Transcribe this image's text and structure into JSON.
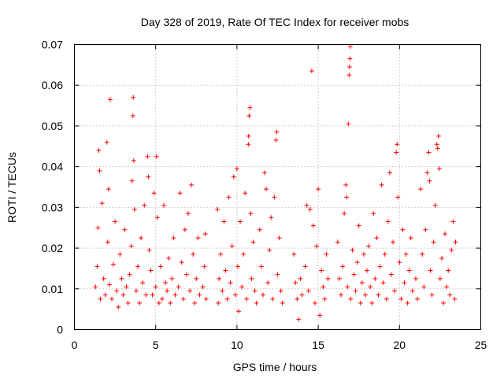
{
  "chart_data": {
    "type": "scatter",
    "title": "Day 328 of 2019, Rate Of TEC Index for receiver mobs",
    "xlabel": "GPS time / hours",
    "ylabel": "ROTI / TECUs",
    "xlim": [
      0,
      25
    ],
    "ylim": [
      0,
      0.07
    ],
    "x_ticks": [
      0,
      5,
      10,
      15,
      20,
      25
    ],
    "y_ticks": [
      0,
      0.01,
      0.02,
      0.03,
      0.04,
      0.05,
      0.06,
      0.07
    ],
    "x_tick_labels": [
      "0",
      "5",
      "10",
      "15",
      "20",
      "25"
    ],
    "y_tick_labels": [
      "0",
      "0.01",
      "0.02",
      "0.03",
      "0.04",
      "0.05",
      "0.06",
      "0.07"
    ],
    "grid": true,
    "marker": "+",
    "color": "#ff0000",
    "series": [
      {
        "name": "ROTI",
        "points": [
          [
            1.3,
            0.0105
          ],
          [
            1.4,
            0.0155
          ],
          [
            1.45,
            0.025
          ],
          [
            1.5,
            0.044
          ],
          [
            1.55,
            0.039
          ],
          [
            1.6,
            0.0075
          ],
          [
            1.7,
            0.031
          ],
          [
            1.8,
            0.0125
          ],
          [
            1.9,
            0.0085
          ],
          [
            2.0,
            0.046
          ],
          [
            2.05,
            0.0215
          ],
          [
            2.1,
            0.0345
          ],
          [
            2.15,
            0.011
          ],
          [
            2.2,
            0.0565
          ],
          [
            2.3,
            0.0075
          ],
          [
            2.4,
            0.016
          ],
          [
            2.5,
            0.0265
          ],
          [
            2.6,
            0.0095
          ],
          [
            2.7,
            0.0055
          ],
          [
            2.8,
            0.0185
          ],
          [
            2.9,
            0.0125
          ],
          [
            3.0,
            0.0085
          ],
          [
            3.1,
            0.0245
          ],
          [
            3.2,
            0.0105
          ],
          [
            3.3,
            0.0065
          ],
          [
            3.4,
            0.0135
          ],
          [
            3.5,
            0.0205
          ],
          [
            3.55,
            0.0365
          ],
          [
            3.6,
            0.0525
          ],
          [
            3.62,
            0.057
          ],
          [
            3.65,
            0.0415
          ],
          [
            3.7,
            0.0295
          ],
          [
            3.8,
            0.0095
          ],
          [
            3.9,
            0.0155
          ],
          [
            4.0,
            0.0065
          ],
          [
            4.1,
            0.0225
          ],
          [
            4.2,
            0.0115
          ],
          [
            4.3,
            0.0305
          ],
          [
            4.4,
            0.0085
          ],
          [
            4.5,
            0.0425
          ],
          [
            4.55,
            0.0375
          ],
          [
            4.6,
            0.0195
          ],
          [
            4.7,
            0.0145
          ],
          [
            4.8,
            0.0085
          ],
          [
            4.9,
            0.0335
          ],
          [
            5.0,
            0.0105
          ],
          [
            5.05,
            0.0425
          ],
          [
            5.1,
            0.0275
          ],
          [
            5.2,
            0.0065
          ],
          [
            5.3,
            0.0155
          ],
          [
            5.4,
            0.0075
          ],
          [
            5.5,
            0.0305
          ],
          [
            5.6,
            0.0115
          ],
          [
            5.7,
            0.0095
          ],
          [
            5.8,
            0.0175
          ],
          [
            5.9,
            0.0065
          ],
          [
            6.0,
            0.0125
          ],
          [
            6.1,
            0.0225
          ],
          [
            6.2,
            0.0085
          ],
          [
            6.4,
            0.0105
          ],
          [
            6.5,
            0.0335
          ],
          [
            6.6,
            0.0165
          ],
          [
            6.7,
            0.0075
          ],
          [
            6.8,
            0.0245
          ],
          [
            6.9,
            0.0135
          ],
          [
            7.0,
            0.0285
          ],
          [
            7.1,
            0.0095
          ],
          [
            7.2,
            0.0355
          ],
          [
            7.3,
            0.0185
          ],
          [
            7.4,
            0.0065
          ],
          [
            7.5,
            0.0125
          ],
          [
            7.6,
            0.0225
          ],
          [
            7.7,
            0.0085
          ],
          [
            7.9,
            0.0105
          ],
          [
            8.0,
            0.0155
          ],
          [
            8.05,
            0.0235
          ],
          [
            8.1,
            0.0075
          ],
          [
            8.8,
            0.0295
          ],
          [
            8.85,
            0.0065
          ],
          [
            8.9,
            0.0125
          ],
          [
            9.0,
            0.0185
          ],
          [
            9.1,
            0.0095
          ],
          [
            9.2,
            0.0265
          ],
          [
            9.3,
            0.0145
          ],
          [
            9.4,
            0.0075
          ],
          [
            9.5,
            0.0325
          ],
          [
            9.6,
            0.0115
          ],
          [
            9.7,
            0.0205
          ],
          [
            9.8,
            0.0375
          ],
          [
            9.9,
            0.0085
          ],
          [
            10.0,
            0.0395
          ],
          [
            10.05,
            0.0155
          ],
          [
            10.1,
            0.0045
          ],
          [
            10.2,
            0.0265
          ],
          [
            10.3,
            0.0105
          ],
          [
            10.4,
            0.0185
          ],
          [
            10.5,
            0.0335
          ],
          [
            10.6,
            0.0075
          ],
          [
            10.7,
            0.0455
          ],
          [
            10.72,
            0.0475
          ],
          [
            10.75,
            0.0525
          ],
          [
            10.8,
            0.0545
          ],
          [
            10.85,
            0.0285
          ],
          [
            10.9,
            0.0125
          ],
          [
            11.0,
            0.0215
          ],
          [
            11.1,
            0.0095
          ],
          [
            11.2,
            0.0065
          ],
          [
            11.4,
            0.0245
          ],
          [
            11.5,
            0.0155
          ],
          [
            11.6,
            0.0085
          ],
          [
            11.7,
            0.0385
          ],
          [
            11.8,
            0.0345
          ],
          [
            11.9,
            0.0115
          ],
          [
            12.0,
            0.0195
          ],
          [
            12.1,
            0.0275
          ],
          [
            12.2,
            0.0075
          ],
          [
            12.3,
            0.0325
          ],
          [
            12.4,
            0.0465
          ],
          [
            12.45,
            0.0485
          ],
          [
            12.5,
            0.0135
          ],
          [
            12.6,
            0.0225
          ],
          [
            12.7,
            0.0095
          ],
          [
            12.8,
            0.0065
          ],
          [
            13.5,
            0.0185
          ],
          [
            13.6,
            0.0115
          ],
          [
            13.7,
            0.0075
          ],
          [
            13.8,
            0.0025
          ],
          [
            13.9,
            0.0125
          ],
          [
            14.0,
            0.0085
          ],
          [
            14.2,
            0.0155
          ],
          [
            14.3,
            0.0305
          ],
          [
            14.4,
            0.0095
          ],
          [
            14.5,
            0.0295
          ],
          [
            14.6,
            0.0635
          ],
          [
            14.7,
            0.0255
          ],
          [
            14.8,
            0.0065
          ],
          [
            14.9,
            0.0205
          ],
          [
            15.0,
            0.0345
          ],
          [
            15.1,
            0.0035
          ],
          [
            15.2,
            0.0145
          ],
          [
            15.3,
            0.0105
          ],
          [
            15.4,
            0.0075
          ],
          [
            15.5,
            0.0185
          ],
          [
            15.6,
            0.0125
          ],
          [
            16.2,
            0.0215
          ],
          [
            16.3,
            0.0125
          ],
          [
            16.4,
            0.0085
          ],
          [
            16.5,
            0.0155
          ],
          [
            16.6,
            0.0285
          ],
          [
            16.7,
            0.0355
          ],
          [
            16.75,
            0.0325
          ],
          [
            16.8,
            0.0105
          ],
          [
            16.85,
            0.0505
          ],
          [
            16.9,
            0.0625
          ],
          [
            16.92,
            0.0645
          ],
          [
            16.95,
            0.0665
          ],
          [
            16.97,
            0.0695
          ],
          [
            17.0,
            0.0075
          ],
          [
            17.1,
            0.0195
          ],
          [
            17.2,
            0.0135
          ],
          [
            17.3,
            0.0095
          ],
          [
            17.4,
            0.0165
          ],
          [
            17.5,
            0.0255
          ],
          [
            17.6,
            0.0065
          ],
          [
            17.7,
            0.0115
          ],
          [
            17.8,
            0.0185
          ],
          [
            17.9,
            0.0085
          ],
          [
            18.0,
            0.0145
          ],
          [
            18.1,
            0.0205
          ],
          [
            18.2,
            0.0105
          ],
          [
            18.3,
            0.0065
          ],
          [
            18.4,
            0.0285
          ],
          [
            18.5,
            0.0125
          ],
          [
            18.6,
            0.0225
          ],
          [
            18.7,
            0.0085
          ],
          [
            18.8,
            0.0155
          ],
          [
            18.9,
            0.0355
          ],
          [
            19.0,
            0.0115
          ],
          [
            19.1,
            0.0185
          ],
          [
            19.2,
            0.0075
          ],
          [
            19.3,
            0.0265
          ],
          [
            19.4,
            0.0385
          ],
          [
            19.5,
            0.0135
          ],
          [
            19.6,
            0.0215
          ],
          [
            19.7,
            0.0095
          ],
          [
            19.8,
            0.0435
          ],
          [
            19.85,
            0.0455
          ],
          [
            19.9,
            0.0325
          ],
          [
            20.0,
            0.0165
          ],
          [
            20.1,
            0.0075
          ],
          [
            20.2,
            0.0245
          ],
          [
            20.3,
            0.0115
          ],
          [
            20.4,
            0.0185
          ],
          [
            20.5,
            0.0065
          ],
          [
            20.6,
            0.0145
          ],
          [
            20.7,
            0.0225
          ],
          [
            20.8,
            0.0095
          ],
          [
            21.0,
            0.0125
          ],
          [
            21.1,
            0.0075
          ],
          [
            21.3,
            0.0345
          ],
          [
            21.4,
            0.0185
          ],
          [
            21.5,
            0.0105
          ],
          [
            21.6,
            0.0245
          ],
          [
            21.7,
            0.0385
          ],
          [
            21.8,
            0.0435
          ],
          [
            21.85,
            0.0365
          ],
          [
            21.9,
            0.0145
          ],
          [
            22.0,
            0.0085
          ],
          [
            22.1,
            0.0215
          ],
          [
            22.2,
            0.0305
          ],
          [
            22.3,
            0.0455
          ],
          [
            22.35,
            0.0445
          ],
          [
            22.4,
            0.0475
          ],
          [
            22.45,
            0.0395
          ],
          [
            22.5,
            0.0125
          ],
          [
            22.6,
            0.0175
          ],
          [
            22.7,
            0.0065
          ],
          [
            22.8,
            0.0235
          ],
          [
            22.9,
            0.0105
          ],
          [
            23.0,
            0.0145
          ],
          [
            23.1,
            0.0085
          ],
          [
            23.2,
            0.0195
          ],
          [
            23.3,
            0.0265
          ],
          [
            23.4,
            0.0075
          ],
          [
            23.45,
            0.0215
          ]
        ]
      }
    ]
  }
}
